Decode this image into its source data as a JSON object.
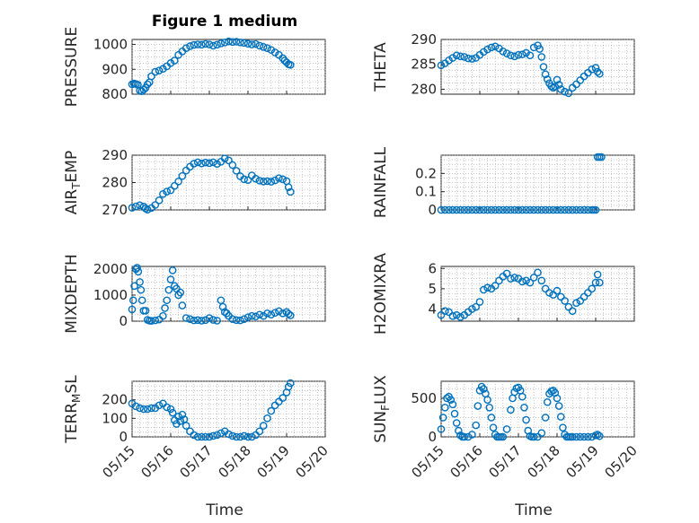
{
  "figure": {
    "title": "Figure 1 medium",
    "xlabel": "Time"
  },
  "chart_data": [
    {
      "type": "scatter",
      "ylabel": "PRESSURE",
      "ylim": [
        800,
        1020
      ],
      "yticks": [
        800,
        900,
        1000
      ],
      "xlim": [
        0,
        5
      ],
      "xtick_labels": [],
      "color": "#0072BD",
      "grid": true,
      "x": [
        0.0,
        0.05,
        0.1,
        0.15,
        0.2,
        0.25,
        0.3,
        0.35,
        0.4,
        0.45,
        0.5,
        0.6,
        0.7,
        0.8,
        0.9,
        1.0,
        1.1,
        1.2,
        1.3,
        1.4,
        1.5,
        1.6,
        1.7,
        1.8,
        1.9,
        2.0,
        2.1,
        2.2,
        2.3,
        2.4,
        2.5,
        2.6,
        2.7,
        2.8,
        2.9,
        3.0,
        3.1,
        3.2,
        3.3,
        3.4,
        3.5,
        3.6,
        3.7,
        3.8,
        3.9,
        3.95,
        4.0,
        4.05,
        4.1
      ],
      "y": [
        840,
        843,
        841,
        838,
        815,
        812,
        818,
        826,
        840,
        848,
        872,
        890,
        895,
        902,
        912,
        925,
        935,
        958,
        972,
        985,
        993,
        998,
        1000,
        999,
        1002,
        1000,
        995,
        999,
        1004,
        1008,
        1012,
        1010,
        1011,
        1008,
        1006,
        1003,
        1000,
        1002,
        995,
        990,
        985,
        978,
        968,
        958,
        945,
        935,
        928,
        920,
        918
      ]
    },
    {
      "type": "scatter",
      "ylabel": "THETA",
      "ylim": [
        279,
        290
      ],
      "yticks": [
        280,
        285,
        290
      ],
      "xlim": [
        0,
        5
      ],
      "xtick_labels": [],
      "color": "#0072BD",
      "grid": true,
      "x": [
        0.0,
        0.1,
        0.2,
        0.3,
        0.4,
        0.5,
        0.6,
        0.7,
        0.8,
        0.9,
        1.0,
        1.1,
        1.2,
        1.3,
        1.4,
        1.5,
        1.6,
        1.7,
        1.8,
        1.9,
        2.0,
        2.1,
        2.2,
        2.3,
        2.4,
        2.5,
        2.55,
        2.6,
        2.65,
        2.7,
        2.75,
        2.8,
        2.85,
        2.9,
        2.95,
        3.0,
        3.05,
        3.1,
        3.2,
        3.3,
        3.4,
        3.5,
        3.6,
        3.7,
        3.8,
        3.9,
        4.0,
        4.05,
        4.1
      ],
      "y": [
        284.8,
        285.2,
        285.8,
        286.3,
        286.8,
        286.6,
        286.5,
        286.2,
        286.1,
        286.3,
        286.9,
        287.5,
        288.0,
        288.4,
        288.6,
        288.2,
        287.6,
        287.2,
        286.8,
        286.6,
        286.9,
        287.0,
        287.3,
        286.8,
        288.4,
        288.8,
        288.1,
        286.5,
        284.5,
        283.0,
        282.0,
        281.2,
        280.6,
        280.3,
        280.5,
        281.9,
        280.9,
        280.0,
        279.5,
        279.2,
        280.3,
        281.0,
        281.8,
        282.6,
        283.3,
        284.0,
        284.3,
        283.5,
        283.1
      ]
    },
    {
      "type": "scatter",
      "ylabel": "AIR_TEMP",
      "ylim": [
        270,
        290
      ],
      "yticks": [
        270,
        280,
        290
      ],
      "xlim": [
        0,
        5
      ],
      "xtick_labels": [],
      "color": "#0072BD",
      "grid": true,
      "x": [
        0.0,
        0.1,
        0.2,
        0.3,
        0.35,
        0.4,
        0.5,
        0.6,
        0.7,
        0.8,
        0.9,
        1.0,
        1.1,
        1.2,
        1.3,
        1.4,
        1.5,
        1.6,
        1.7,
        1.8,
        1.9,
        2.0,
        2.1,
        2.2,
        2.3,
        2.4,
        2.5,
        2.6,
        2.7,
        2.8,
        2.9,
        3.0,
        3.1,
        3.2,
        3.3,
        3.4,
        3.5,
        3.6,
        3.7,
        3.8,
        3.9,
        4.0,
        4.05,
        4.1
      ],
      "y": [
        270.8,
        271.3,
        271.7,
        271.2,
        270.5,
        270.1,
        270.7,
        271.8,
        273.5,
        275.8,
        276.7,
        277.2,
        278.8,
        280.4,
        282.4,
        284.4,
        285.8,
        286.9,
        287.4,
        287.0,
        287.3,
        287.1,
        287.4,
        286.8,
        287.6,
        288.8,
        288.1,
        286.4,
        284.3,
        282.3,
        281.2,
        280.9,
        282.6,
        281.4,
        280.7,
        280.4,
        280.5,
        280.3,
        280.8,
        281.6,
        281.2,
        280.5,
        278.3,
        276.6
      ]
    },
    {
      "type": "scatter",
      "ylabel": "RAINFALL",
      "ylim": [
        0,
        0.3
      ],
      "yticks": [
        0,
        0.1,
        0.2
      ],
      "xlim": [
        0,
        5
      ],
      "xtick_labels": [],
      "color": "#0072BD",
      "grid": true,
      "x": [
        0.0,
        0.1,
        0.2,
        0.3,
        0.4,
        0.5,
        0.6,
        0.7,
        0.8,
        0.9,
        1.0,
        1.1,
        1.2,
        1.3,
        1.4,
        1.5,
        1.6,
        1.7,
        1.8,
        1.9,
        2.0,
        2.1,
        2.2,
        2.3,
        2.4,
        2.5,
        2.6,
        2.7,
        2.8,
        2.9,
        3.0,
        3.1,
        3.2,
        3.3,
        3.4,
        3.5,
        3.6,
        3.7,
        3.8,
        3.9,
        3.95,
        4.0,
        4.05,
        4.1,
        4.15
      ],
      "y": [
        0,
        0,
        0,
        0,
        0,
        0,
        0,
        0,
        0,
        0,
        0,
        0,
        0,
        0,
        0,
        0,
        0,
        0,
        0,
        0,
        0,
        0,
        0,
        0,
        0,
        0,
        0,
        0,
        0,
        0,
        0,
        0,
        0,
        0,
        0,
        0,
        0,
        0,
        0,
        0,
        0,
        0,
        0.29,
        0.29,
        0.29
      ]
    },
    {
      "type": "scatter",
      "ylabel": "MIXDEPTH",
      "ylim": [
        0,
        2100
      ],
      "yticks": [
        0,
        1000,
        2000
      ],
      "xlim": [
        0,
        5
      ],
      "xtick_labels": [],
      "color": "#0072BD",
      "grid": true,
      "x": [
        0.0,
        0.03,
        0.06,
        0.1,
        0.13,
        0.16,
        0.2,
        0.23,
        0.26,
        0.3,
        0.35,
        0.4,
        0.45,
        0.5,
        0.6,
        0.7,
        0.8,
        0.85,
        0.9,
        0.95,
        1.0,
        1.05,
        1.1,
        1.15,
        1.2,
        1.25,
        1.3,
        1.4,
        1.5,
        1.6,
        1.7,
        1.8,
        1.9,
        2.0,
        2.1,
        2.2,
        2.3,
        2.35,
        2.4,
        2.45,
        2.5,
        2.6,
        2.7,
        2.8,
        2.9,
        3.0,
        3.1,
        3.2,
        3.3,
        3.4,
        3.5,
        3.6,
        3.7,
        3.8,
        3.9,
        4.0,
        4.05,
        4.1
      ],
      "y": [
        450,
        800,
        1350,
        2000,
        2050,
        1900,
        1500,
        1200,
        800,
        400,
        400,
        50,
        20,
        10,
        30,
        60,
        200,
        500,
        800,
        1200,
        1600,
        1950,
        1350,
        1250,
        1000,
        1100,
        600,
        120,
        80,
        30,
        40,
        20,
        40,
        120,
        50,
        20,
        800,
        550,
        350,
        300,
        200,
        80,
        40,
        30,
        80,
        150,
        200,
        180,
        250,
        200,
        300,
        250,
        320,
        380,
        300,
        350,
        280,
        220
      ]
    },
    {
      "type": "scatter",
      "ylabel": "H2OMIXRA",
      "ylim": [
        3.4,
        6.1
      ],
      "yticks": [
        4,
        5,
        6
      ],
      "xlim": [
        0,
        5
      ],
      "xtick_labels": [],
      "color": "#0072BD",
      "grid": true,
      "x": [
        0.0,
        0.1,
        0.2,
        0.3,
        0.4,
        0.5,
        0.6,
        0.7,
        0.8,
        0.9,
        1.0,
        1.1,
        1.2,
        1.3,
        1.4,
        1.5,
        1.6,
        1.7,
        1.8,
        1.9,
        2.0,
        2.1,
        2.2,
        2.3,
        2.4,
        2.5,
        2.6,
        2.7,
        2.8,
        2.9,
        3.0,
        3.1,
        3.2,
        3.3,
        3.4,
        3.5,
        3.6,
        3.7,
        3.8,
        3.9,
        4.0,
        4.05,
        4.1
      ],
      "y": [
        3.7,
        3.9,
        3.85,
        3.65,
        3.7,
        3.6,
        3.7,
        3.85,
        4.0,
        4.1,
        4.35,
        4.95,
        5.05,
        5.0,
        5.15,
        5.4,
        5.6,
        5.75,
        5.5,
        5.55,
        5.5,
        5.35,
        5.4,
        5.3,
        5.55,
        5.8,
        5.4,
        5.0,
        4.8,
        4.7,
        4.9,
        4.6,
        4.4,
        4.1,
        3.9,
        4.3,
        4.4,
        4.6,
        4.8,
        5.0,
        5.3,
        5.7,
        5.3
      ]
    },
    {
      "type": "scatter",
      "ylabel": "TERR_MSL",
      "ylim": [
        0,
        300
      ],
      "yticks": [
        0,
        100,
        200
      ],
      "xlim": [
        0,
        5
      ],
      "xtick_labels": [
        "05/15",
        "05/16",
        "05/17",
        "05/18",
        "05/19",
        "05/20"
      ],
      "color": "#0072BD",
      "grid": true,
      "x": [
        0.0,
        0.1,
        0.2,
        0.3,
        0.4,
        0.5,
        0.6,
        0.7,
        0.8,
        0.9,
        1.0,
        1.05,
        1.1,
        1.15,
        1.2,
        1.25,
        1.3,
        1.35,
        1.4,
        1.5,
        1.6,
        1.7,
        1.8,
        1.9,
        2.0,
        2.1,
        2.2,
        2.3,
        2.4,
        2.5,
        2.6,
        2.7,
        2.8,
        2.9,
        3.0,
        3.1,
        3.2,
        3.3,
        3.4,
        3.5,
        3.6,
        3.7,
        3.8,
        3.9,
        4.0,
        4.05,
        4.1
      ],
      "y": [
        180,
        165,
        155,
        150,
        150,
        155,
        155,
        170,
        180,
        160,
        150,
        130,
        90,
        70,
        110,
        85,
        120,
        95,
        60,
        30,
        10,
        0,
        0,
        0,
        0,
        5,
        10,
        20,
        30,
        15,
        5,
        0,
        0,
        5,
        0,
        0,
        10,
        30,
        60,
        100,
        140,
        170,
        190,
        210,
        240,
        270,
        290
      ]
    },
    {
      "type": "scatter",
      "ylabel": "SUN_FLUX",
      "ylim": [
        0,
        720
      ],
      "yticks": [
        0,
        500
      ],
      "xlim": [
        0,
        5
      ],
      "xtick_labels": [
        "05/15",
        "05/16",
        "05/17",
        "05/18",
        "05/19",
        "05/20"
      ],
      "color": "#0072BD",
      "grid": true,
      "x": [
        0.0,
        0.05,
        0.1,
        0.15,
        0.2,
        0.25,
        0.3,
        0.35,
        0.4,
        0.45,
        0.5,
        0.55,
        0.6,
        0.7,
        0.8,
        0.9,
        0.95,
        1.0,
        1.05,
        1.1,
        1.15,
        1.2,
        1.25,
        1.3,
        1.35,
        1.4,
        1.45,
        1.5,
        1.55,
        1.6,
        1.7,
        1.8,
        1.85,
        1.9,
        1.95,
        2.0,
        2.05,
        2.1,
        2.15,
        2.2,
        2.25,
        2.3,
        2.35,
        2.4,
        2.5,
        2.6,
        2.7,
        2.75,
        2.8,
        2.85,
        2.9,
        2.95,
        3.0,
        3.05,
        3.1,
        3.15,
        3.2,
        3.25,
        3.3,
        3.35,
        3.4,
        3.5,
        3.6,
        3.7,
        3.8,
        3.9,
        4.0,
        4.05,
        4.1
      ],
      "y": [
        100,
        250,
        380,
        500,
        520,
        480,
        420,
        300,
        180,
        80,
        20,
        0,
        0,
        0,
        30,
        150,
        400,
        600,
        650,
        620,
        560,
        480,
        380,
        250,
        120,
        30,
        0,
        0,
        0,
        0,
        100,
        350,
        500,
        580,
        630,
        640,
        600,
        520,
        380,
        220,
        80,
        10,
        0,
        0,
        0,
        50,
        250,
        450,
        560,
        590,
        600,
        570,
        500,
        400,
        260,
        120,
        30,
        0,
        0,
        0,
        0,
        0,
        0,
        0,
        0,
        0,
        20,
        30,
        10
      ]
    }
  ]
}
